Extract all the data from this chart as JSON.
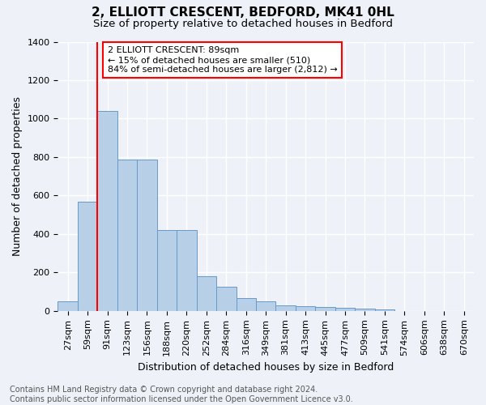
{
  "title1": "2, ELLIOTT CRESCENT, BEDFORD, MK41 0HL",
  "title2": "Size of property relative to detached houses in Bedford",
  "xlabel": "Distribution of detached houses by size in Bedford",
  "ylabel": "Number of detached properties",
  "categories": [
    "27sqm",
    "59sqm",
    "91sqm",
    "123sqm",
    "156sqm",
    "188sqm",
    "220sqm",
    "252sqm",
    "284sqm",
    "316sqm",
    "349sqm",
    "381sqm",
    "413sqm",
    "445sqm",
    "477sqm",
    "509sqm",
    "541sqm",
    "574sqm",
    "606sqm",
    "638sqm",
    "670sqm"
  ],
  "values": [
    50,
    570,
    1040,
    785,
    785,
    420,
    420,
    180,
    125,
    65,
    50,
    28,
    25,
    22,
    15,
    10,
    8,
    0,
    0,
    0,
    0
  ],
  "bar_color": "#b8cfe8",
  "bar_edge_color": "#6699cc",
  "vline_color": "red",
  "annotation_text": "2 ELLIOTT CRESCENT: 89sqm\n← 15% of detached houses are smaller (510)\n84% of semi-detached houses are larger (2,812) →",
  "annotation_box_color": "white",
  "annotation_box_edge": "red",
  "ylim": [
    0,
    1400
  ],
  "yticks": [
    0,
    200,
    400,
    600,
    800,
    1000,
    1200,
    1400
  ],
  "footnote": "Contains HM Land Registry data © Crown copyright and database right 2024.\nContains public sector information licensed under the Open Government Licence v3.0.",
  "bg_color": "#eef2f8",
  "grid_color": "white",
  "title1_fontsize": 11,
  "title2_fontsize": 9.5,
  "xlabel_fontsize": 9,
  "ylabel_fontsize": 9,
  "tick_fontsize": 8,
  "footnote_fontsize": 7
}
